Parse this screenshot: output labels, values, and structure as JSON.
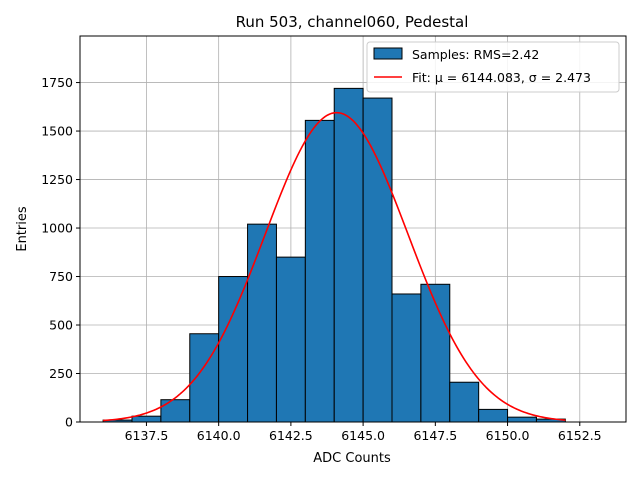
{
  "chart_data": {
    "type": "bar",
    "title": "Run 503, channel060, Pedestal",
    "xlabel": "ADC Counts",
    "ylabel": "Entries",
    "xlim": [
      6135.2,
      6154.1
    ],
    "ylim": [
      0,
      1990
    ],
    "xticks": [
      6137.5,
      6140.0,
      6142.5,
      6145.0,
      6147.5,
      6150.0,
      6152.5
    ],
    "xtick_labels": [
      "6137.5",
      "6140.0",
      "6142.5",
      "6145.0",
      "6147.5",
      "6150.0",
      "6152.5"
    ],
    "yticks": [
      0,
      250,
      500,
      750,
      1000,
      1250,
      1500,
      1750
    ],
    "ytick_labels": [
      "0",
      "250",
      "500",
      "750",
      "1000",
      "1250",
      "1500",
      "1750"
    ],
    "grid": true,
    "legend_position": "top-right",
    "bins": {
      "edges": [
        6136,
        6137,
        6138,
        6139,
        6140,
        6141,
        6142,
        6143,
        6144,
        6145,
        6146,
        6147,
        6148,
        6149,
        6150,
        6151,
        6152
      ],
      "values": [
        10,
        30,
        115,
        455,
        750,
        1020,
        850,
        1555,
        1720,
        1670,
        660,
        710,
        205,
        65,
        25,
        15
      ]
    },
    "fit": {
      "mu": 6144.083,
      "sigma": 2.473,
      "amplitude": 1595,
      "x_range": [
        6136,
        6152
      ]
    },
    "series": [
      {
        "name": "Samples: RMS=2.42",
        "kind": "histogram",
        "color": "#1f77b4"
      },
      {
        "name": "Fit: μ = 6144.083, σ = 2.473",
        "kind": "line",
        "color": "#ff0000"
      }
    ]
  }
}
